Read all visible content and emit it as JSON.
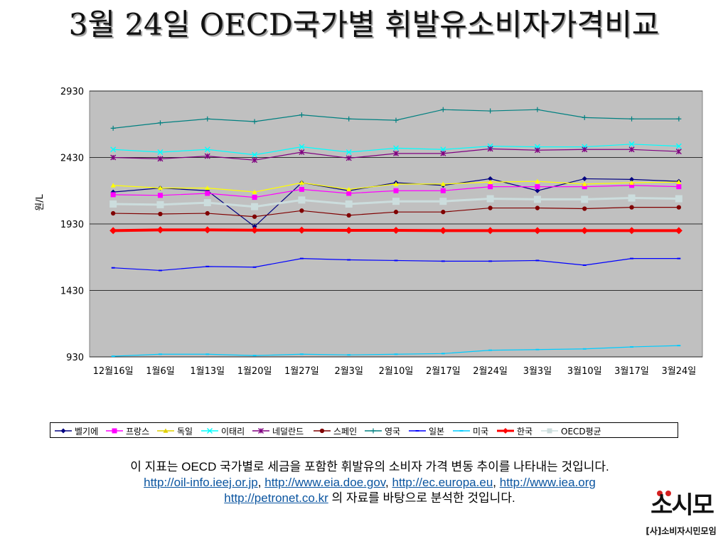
{
  "title": "3월 24일 OECD국가별 휘발유소비자가격비교",
  "chart_data": {
    "type": "line",
    "ylabel": "원/L",
    "ylim": [
      930,
      2930
    ],
    "yticks": [
      930,
      1430,
      1930,
      2430,
      2930
    ],
    "grid": true,
    "legend_position": "bottom",
    "categories": [
      "12월16일",
      "1월6일",
      "1월13일",
      "1월20일",
      "1월27일",
      "2월3일",
      "2월10일",
      "2월17일",
      "2월24일",
      "3월3일",
      "3월10일",
      "3월17일",
      "3월24일"
    ],
    "series": [
      {
        "name": "벨기에",
        "color": "#000080",
        "marker": "diamond",
        "values": [
          2170,
          2200,
          2180,
          1910,
          2240,
          2180,
          2240,
          2220,
          2270,
          2180,
          2270,
          2265,
          2250
        ]
      },
      {
        "name": "프랑스",
        "color": "#ff00ff",
        "marker": "square",
        "values": [
          2150,
          2145,
          2160,
          2130,
          2190,
          2160,
          2180,
          2180,
          2210,
          2210,
          2210,
          2220,
          2210
        ]
      },
      {
        "name": "독일",
        "color": "#ffff00",
        "marker": "triangle",
        "values": [
          2220,
          2200,
          2200,
          2170,
          2240,
          2190,
          2230,
          2230,
          2245,
          2250,
          2230,
          2240,
          2245
        ]
      },
      {
        "name": "이태리",
        "color": "#00ffff",
        "marker": "x",
        "values": [
          2490,
          2470,
          2490,
          2450,
          2510,
          2470,
          2500,
          2490,
          2515,
          2510,
          2510,
          2530,
          2515
        ]
      },
      {
        "name": "네덜란드",
        "color": "#800080",
        "marker": "star",
        "values": [
          2430,
          2420,
          2440,
          2410,
          2470,
          2425,
          2460,
          2460,
          2495,
          2485,
          2490,
          2490,
          2475
        ]
      },
      {
        "name": "스페인",
        "color": "#800000",
        "marker": "circle",
        "values": [
          2010,
          2005,
          2010,
          1985,
          2030,
          1995,
          2020,
          2020,
          2050,
          2050,
          2045,
          2055,
          2055
        ]
      },
      {
        "name": "영국",
        "color": "#008080",
        "marker": "plus",
        "values": [
          2650,
          2690,
          2720,
          2700,
          2750,
          2720,
          2710,
          2790,
          2780,
          2790,
          2730,
          2720,
          2720
        ]
      },
      {
        "name": "일본",
        "color": "#0000ff",
        "marker": "dash",
        "values": [
          1600,
          1580,
          1610,
          1605,
          1670,
          1660,
          1655,
          1650,
          1650,
          1655,
          1620,
          1670,
          1670
        ]
      },
      {
        "name": "미국",
        "color": "#00ccff",
        "marker": "dash",
        "values": [
          935,
          950,
          950,
          940,
          950,
          945,
          950,
          955,
          980,
          985,
          990,
          1005,
          1015
        ]
      },
      {
        "name": "한국",
        "color": "#ff0000",
        "marker": "diamond",
        "values": [
          1880,
          1885,
          1885,
          1883,
          1883,
          1882,
          1882,
          1880,
          1880,
          1880,
          1880,
          1880,
          1880
        ]
      },
      {
        "name": "OECD평균",
        "color": "#ccdddd",
        "marker": "square",
        "values": [
          2080,
          2075,
          2090,
          2060,
          2110,
          2080,
          2100,
          2100,
          2120,
          2115,
          2115,
          2125,
          2120
        ]
      }
    ]
  },
  "note": {
    "line1": "이 지표는 OECD 국가별로 세금을 포함한 휘발유의 소비자 가격 변동 추이를 나타내는 것입니다.",
    "link1": "http://oil-info.ieej.or.jp",
    "link2": "http://www.eia.doe.gov",
    "link3": "http://ec.europa.eu",
    "link4": "http://www.iea.org",
    "link5": "http://petronet.co.kr",
    "sep": ",",
    "line3_suffix": " 의 자료를 바탕으로 분석한 것입니다."
  },
  "logo": {
    "mark": "소시모",
    "text": "[사]소비자시민모임",
    "dot_color": "#d42020"
  }
}
